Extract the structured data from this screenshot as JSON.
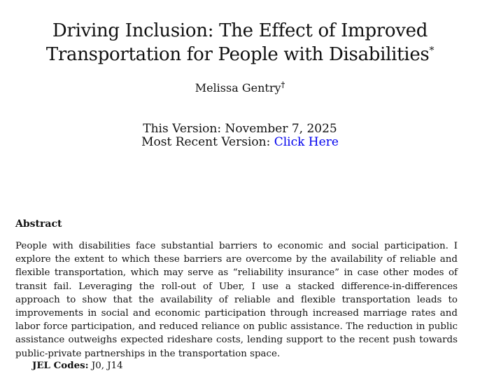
{
  "paper": {
    "title_line1": "Driving Inclusion: The Effect of Improved",
    "title_line2": "Transportation for People with Disabilities",
    "title_footnote_mark": "*",
    "author": "Melissa Gentry",
    "author_footnote_mark": "†",
    "this_version": "This Version: November 7, 2025",
    "most_recent_label": "Most Recent Version: ",
    "most_recent_link": "Click Here",
    "link_color": "#0000ee",
    "abstract_heading": "Abstract",
    "abstract_text": "People with disabilities face substantial barriers to economic and social participation. I explore the extent to which these barriers are overcome by the availability of reliable and flexible transportation, which may serve as “reliability insurance” in case other modes of transit fail. Leveraging the roll-out of Uber, I use a stacked difference-in-differences approach to show that the availability of reliable and flexible transportation leads to improvements in social and economic participation through increased marriage rates and labor force participation, and reduced reliance on public assistance. The reduction in public assistance outweighs expected rideshare costs, lending support to the recent push towards public-private partnerships in the transportation space.",
    "jel_label": "JEL Codes:",
    "jel_codes": "J0, J14"
  }
}
